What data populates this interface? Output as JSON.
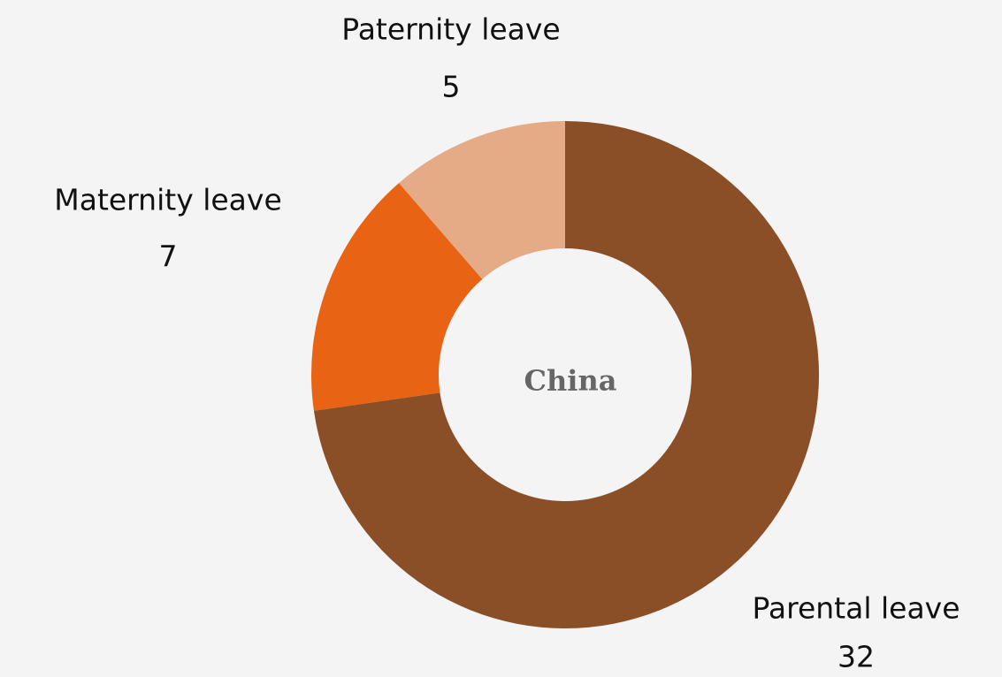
{
  "chart_data": {
    "type": "donut",
    "title": "China",
    "categories": [
      "Parental leave",
      "Maternity leave",
      "Paternity leave"
    ],
    "values": [
      32,
      7,
      5
    ],
    "colors": [
      "#8b4f27",
      "#e86414",
      "#e5ab87"
    ]
  }
}
